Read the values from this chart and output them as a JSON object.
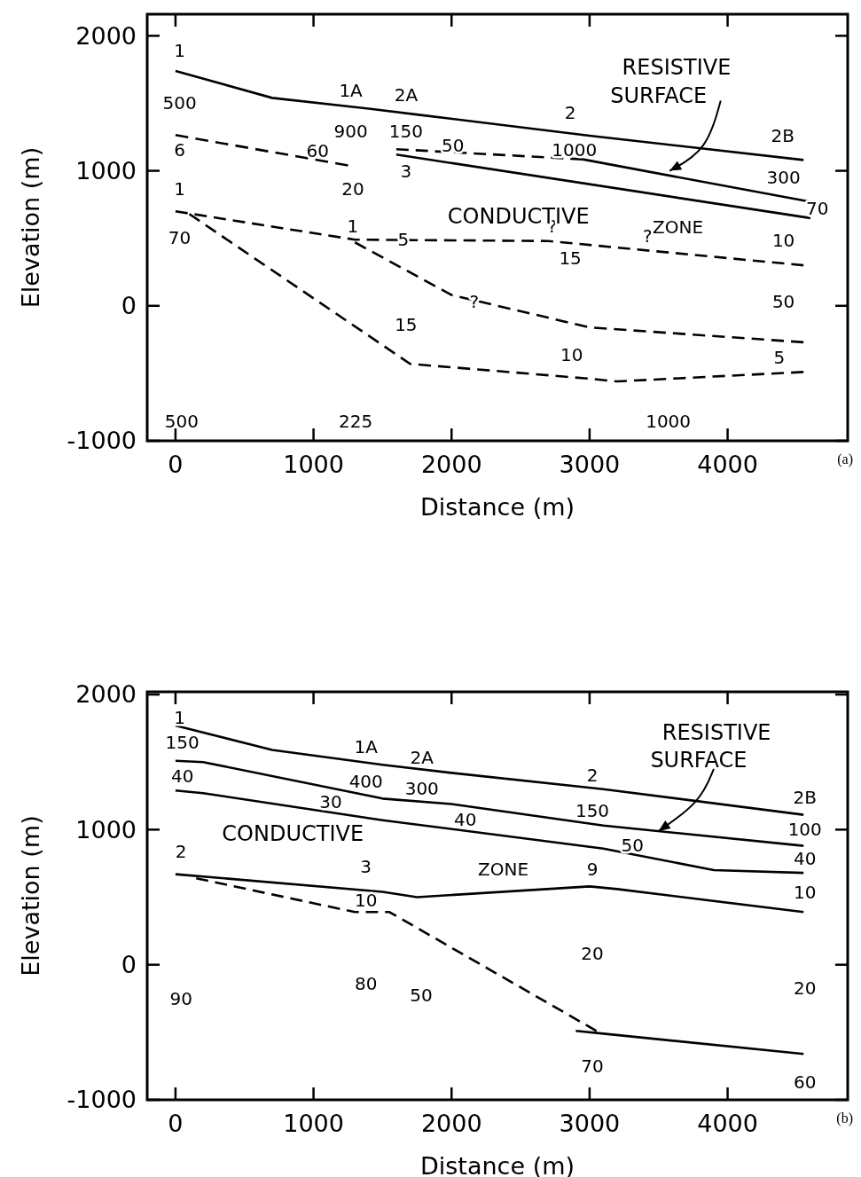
{
  "chart_data": [
    {
      "type": "line",
      "xlabel": "Distance (m)",
      "ylabel": "Elevation (m)",
      "xlim": [
        -205,
        4870
      ],
      "ylim": [
        -1000,
        2160
      ],
      "xticks": [
        0,
        1000,
        2000,
        3000,
        4000
      ],
      "yticks": [
        -1000,
        0,
        1000,
        2000
      ],
      "series": [
        {
          "color": "#000000",
          "line_style": "solid",
          "x": [
            0,
            700,
            1400,
            1800,
            3000,
            4550
          ],
          "values": [
            1740,
            1540,
            1460,
            1410,
            1260,
            1080
          ]
        },
        {
          "color": "#000000",
          "line_style": "dashed",
          "x": [
            0,
            1250
          ],
          "values": [
            1265,
            1040
          ]
        },
        {
          "color": "#000000",
          "line_style": "dashed",
          "x": [
            1600,
            2950
          ],
          "values": [
            1160,
            1085
          ]
        },
        {
          "color": "#000000",
          "line_style": "solid",
          "x": [
            2950,
            4600
          ],
          "values": [
            1085,
            770
          ]
        },
        {
          "color": "#000000",
          "line_style": "solid",
          "x": [
            1600,
            4600
          ],
          "values": [
            1120,
            650
          ]
        },
        {
          "color": "#000000",
          "line_style": "dashed",
          "x": [
            0,
            1300,
            2700,
            4550
          ],
          "values": [
            700,
            490,
            480,
            300
          ]
        },
        {
          "color": "#000000",
          "line_style": "dashed",
          "x": [
            1300,
            2000,
            3000,
            4550
          ],
          "values": [
            470,
            80,
            -160,
            -270
          ]
        },
        {
          "color": "#000000",
          "line_style": "dashed",
          "x": [
            100,
            1700,
            3000,
            3200,
            4550
          ],
          "values": [
            680,
            -430,
            -540,
            -560,
            -490
          ]
        }
      ],
      "annotations": [
        "1",
        "500",
        "6",
        "1",
        "70",
        "1A",
        "900",
        "60",
        "20",
        "1",
        "2A",
        "150",
        "50",
        "3",
        "5",
        "15",
        "?",
        "?",
        "15",
        "?",
        "2",
        "1000",
        "10",
        "2B",
        "300",
        "70",
        "10",
        "50",
        "5",
        "500",
        "225",
        "1000",
        {
          "text": "RESISTIVE",
          "x": 3580,
          "y": 1000
        },
        "SURFACE",
        "CONDUCTIVE",
        "ZONE",
        "(a)"
      ]
    },
    {
      "type": "line",
      "xlabel": "Distance (m)",
      "ylabel": "Elevation (m)",
      "xlim": [
        -205,
        4870
      ],
      "ylim": [
        -1000,
        2020
      ],
      "xticks": [
        0,
        1000,
        2000,
        3000,
        4000
      ],
      "yticks": [
        -1000,
        0,
        1000,
        2000
      ],
      "series": [
        {
          "color": "#000000",
          "line_style": "solid",
          "x": [
            0,
            700,
            1500,
            2000,
            3100,
            4550
          ],
          "values": [
            1770,
            1590,
            1480,
            1420,
            1300,
            1110
          ]
        },
        {
          "color": "#000000",
          "line_style": "solid",
          "x": [
            0,
            200,
            1500,
            2000,
            3100,
            4550
          ],
          "values": [
            1510,
            1500,
            1230,
            1190,
            1030,
            880
          ]
        },
        {
          "color": "#000000",
          "line_style": "solid",
          "x": [
            0,
            200,
            1500,
            3100,
            3900,
            4550
          ],
          "values": [
            1290,
            1270,
            1070,
            860,
            700,
            680
          ]
        },
        {
          "color": "#000000",
          "line_style": "solid",
          "x": [
            0,
            1500,
            1750,
            3000,
            3200,
            4550
          ],
          "values": [
            670,
            540,
            500,
            580,
            560,
            390
          ]
        },
        {
          "color": "#000000",
          "line_style": "dashed",
          "x": [
            150,
            1300,
            1550,
            3050
          ],
          "values": [
            640,
            390,
            390,
            -490
          ]
        },
        {
          "color": "#000000",
          "line_style": "solid",
          "x": [
            2900,
            3100,
            4550
          ],
          "values": [
            -490,
            -510,
            -660
          ]
        }
      ],
      "annotations": [
        "1",
        "150",
        "40",
        "2",
        "90",
        "1A",
        "400",
        "30",
        "3",
        "10",
        "80",
        "2A",
        "300",
        "40",
        "50",
        "2",
        "150",
        "50",
        "9",
        "20",
        "70",
        "2B",
        "100",
        "40",
        "10",
        "20",
        "60",
        {
          "text": "RESISTIVE",
          "x": 3500,
          "y": 990
        },
        "SURFACE",
        "CONDUCTIVE",
        "ZONE",
        "(b)"
      ]
    }
  ]
}
